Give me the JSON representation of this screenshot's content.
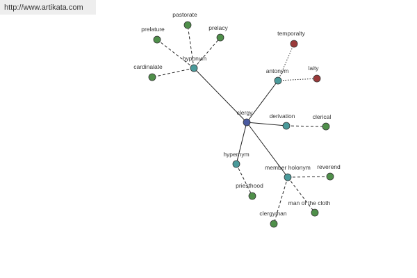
{
  "header": {
    "url": "http://www.artikata.com"
  },
  "nodes": [
    {
      "label": "clergy"
    },
    {
      "label": "hyponym"
    },
    {
      "label": "pastorate"
    },
    {
      "label": "prelature"
    },
    {
      "label": "prelacy"
    },
    {
      "label": "cardinalate"
    },
    {
      "label": "antonym"
    },
    {
      "label": "temporalty"
    },
    {
      "label": "laity"
    },
    {
      "label": "derivation"
    },
    {
      "label": "clerical"
    },
    {
      "label": "hypernym"
    },
    {
      "label": "priesthood"
    },
    {
      "label": "member holonym"
    },
    {
      "label": "reverend"
    },
    {
      "label": "man of the cloth"
    },
    {
      "label": "clergyman"
    }
  ]
}
